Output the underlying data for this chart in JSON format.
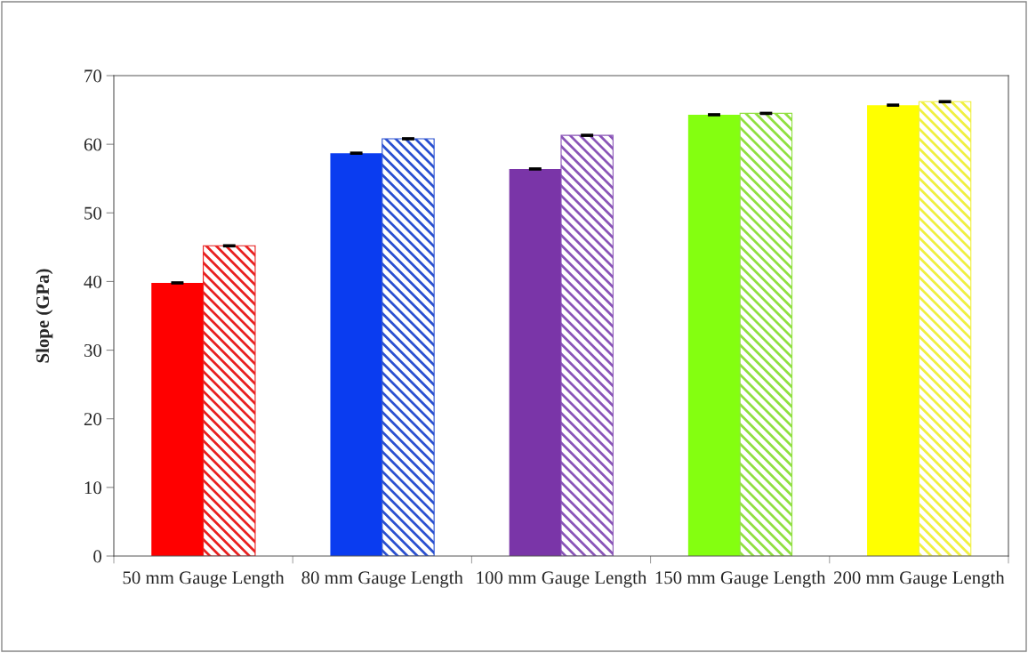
{
  "chart_data": {
    "type": "bar",
    "ylabel": "Slope (GPa)",
    "categories": [
      "50 mm Gauge Length",
      "80 mm Gauge Length",
      "100 mm Gauge Length",
      "150 mm Gauge Length",
      "200 mm Gauge Length"
    ],
    "series": [
      {
        "colors": [
          "#ff0000",
          "#0a3cf0",
          "#7a35a8",
          "#84ff10",
          "#ffff00"
        ],
        "values": [
          39.8,
          58.7,
          56.4,
          64.3,
          65.7
        ],
        "errors": [
          0.1,
          0.1,
          0.1,
          0.1,
          0.1
        ]
      },
      {
        "colors": [
          "#e82020",
          "#2a50d0",
          "#8a55b8",
          "#90e040",
          "#f0f040"
        ],
        "values": [
          45.2,
          60.8,
          61.3,
          64.5,
          66.2
        ],
        "errors": [
          0.1,
          0.1,
          0.1,
          0.1,
          0.1
        ]
      }
    ],
    "ylim": [
      0,
      70
    ],
    "yticks": [
      0,
      10,
      20,
      30,
      40,
      50,
      60,
      70
    ],
    "grid": false,
    "legend": false
  }
}
